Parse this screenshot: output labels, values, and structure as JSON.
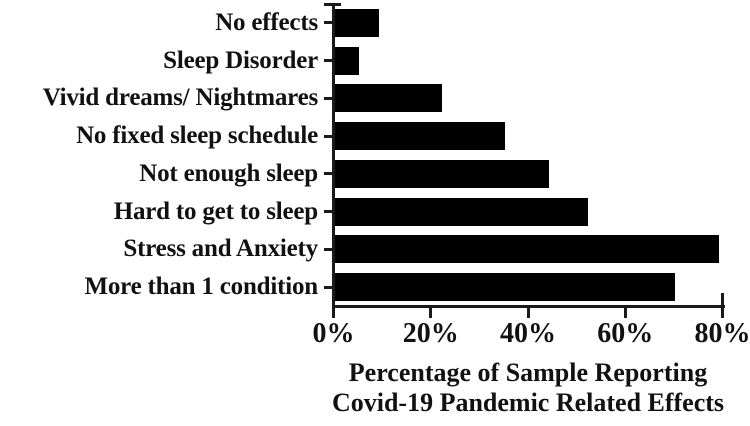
{
  "chart_data": {
    "type": "bar",
    "orientation": "horizontal",
    "categories": [
      "No effects",
      "Sleep Disorder",
      "Vivid dreams/ Nightmares",
      "No fixed sleep schedule",
      "Not enough sleep",
      "Hard to get to sleep",
      "Stress and Anxiety",
      "More than 1 condition"
    ],
    "values": [
      9,
      5,
      22,
      35,
      44,
      52,
      79,
      70
    ],
    "unit": "%",
    "xlabel_lines": [
      "Percentage of Sample Reporting",
      "Covid-19 Pandemic Related Effects"
    ],
    "x_ticks": [
      "0%",
      "20%",
      "40%",
      "60%",
      "80%"
    ],
    "x_tick_values": [
      0,
      20,
      40,
      60,
      80
    ],
    "xlim": [
      0,
      80
    ],
    "bar_color": "#000000",
    "axis_color": "#1a1a1a",
    "text_color": "#111111",
    "grid": false,
    "legend": false
  }
}
